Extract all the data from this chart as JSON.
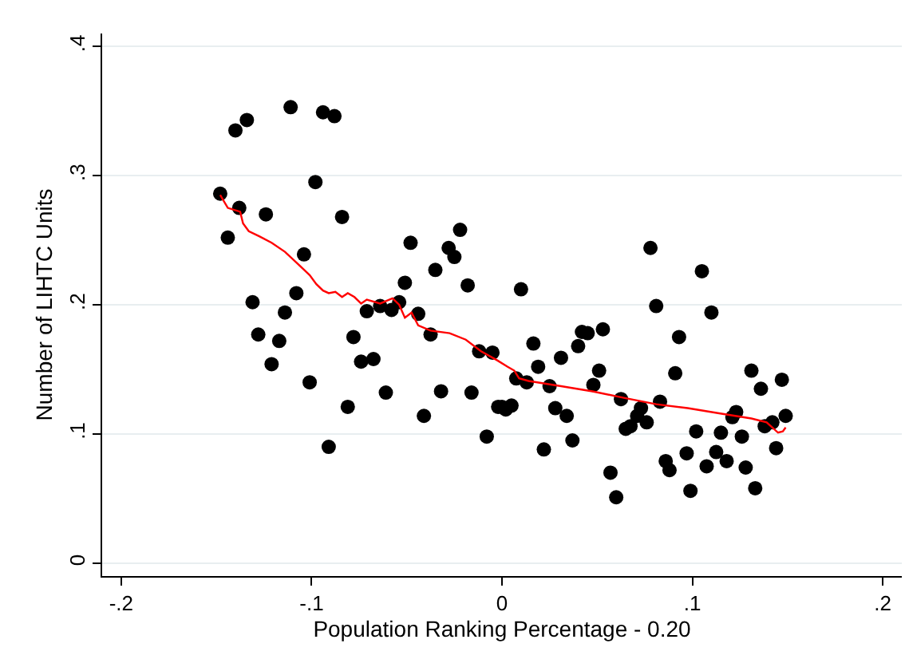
{
  "chart_data": {
    "type": "scatter",
    "xlabel": "Population Ranking Percentage - 0.20",
    "ylabel": "Number of LIHTC Units",
    "xlim": [
      -0.21,
      0.21
    ],
    "ylim": [
      -0.01,
      0.41
    ],
    "xticks": [
      {
        "value": -0.2,
        "label": "-.2"
      },
      {
        "value": -0.1,
        "label": "-.1"
      },
      0,
      {
        "value": 0.1,
        "label": ".1"
      },
      {
        "value": 0.2,
        "label": ".2"
      }
    ],
    "yticks": [
      0,
      {
        "value": 0.1,
        "label": ".1"
      },
      {
        "value": 0.2,
        "label": ".2"
      },
      {
        "value": 0.3,
        "label": ".3"
      },
      {
        "value": 0.4,
        "label": ".4"
      }
    ],
    "grid": "y",
    "marker": "circle",
    "series": [
      {
        "color": "#000000",
        "x": [
          -0.148,
          -0.144,
          -0.14,
          -0.134,
          -0.138,
          -0.131,
          -0.124,
          -0.128,
          -0.121,
          -0.117,
          -0.114,
          -0.111,
          -0.108,
          -0.104,
          -0.101,
          -0.098,
          -0.094,
          -0.088,
          -0.091,
          -0.084,
          -0.081,
          -0.078,
          -0.074,
          -0.0675,
          -0.071,
          -0.064,
          -0.058,
          -0.054,
          -0.061,
          -0.051,
          -0.048,
          -0.044,
          -0.0375,
          -0.041,
          -0.035,
          -0.032,
          -0.028,
          -0.025,
          -0.022,
          -0.018,
          -0.016,
          -0.012,
          -0.008,
          -0.005,
          -0.002,
          0.0,
          0.002,
          0.005,
          0.0075,
          0.01,
          0.013,
          0.0165,
          0.019,
          0.022,
          0.025,
          0.028,
          0.031,
          0.034,
          0.037,
          0.04,
          0.042,
          0.045,
          0.048,
          0.051,
          0.053,
          0.057,
          0.06,
          0.0625,
          0.065,
          0.0675,
          0.071,
          0.073,
          0.076,
          0.078,
          0.081,
          0.083,
          0.086,
          0.088,
          0.091,
          0.093,
          0.097,
          0.099,
          0.102,
          0.105,
          0.1075,
          0.11,
          0.1125,
          0.115,
          0.118,
          0.121,
          0.123,
          0.126,
          0.128,
          0.131,
          0.133,
          0.136,
          0.138,
          0.142,
          0.144,
          0.147,
          0.149
        ],
        "values": [
          0.286,
          0.252,
          0.335,
          0.343,
          0.275,
          0.202,
          0.27,
          0.177,
          0.154,
          0.172,
          0.194,
          0.353,
          0.209,
          0.239,
          0.14,
          0.295,
          0.349,
          0.346,
          0.09,
          0.268,
          0.121,
          0.175,
          0.156,
          0.158,
          0.195,
          0.199,
          0.196,
          0.202,
          0.132,
          0.217,
          0.248,
          0.193,
          0.177,
          0.114,
          0.227,
          0.133,
          0.244,
          0.237,
          0.258,
          0.215,
          0.132,
          0.164,
          0.098,
          0.163,
          0.121,
          0.121,
          0.119,
          0.122,
          0.143,
          0.212,
          0.14,
          0.17,
          0.152,
          0.088,
          0.137,
          0.12,
          0.159,
          0.114,
          0.095,
          0.168,
          0.179,
          0.178,
          0.138,
          0.149,
          0.181,
          0.07,
          0.051,
          0.127,
          0.104,
          0.106,
          0.114,
          0.12,
          0.109,
          0.244,
          0.199,
          0.125,
          0.079,
          0.072,
          0.147,
          0.175,
          0.085,
          0.056,
          0.102,
          0.226,
          0.075,
          0.194,
          0.086,
          0.101,
          0.079,
          0.113,
          0.117,
          0.098,
          0.074,
          0.149,
          0.058,
          0.135,
          0.106,
          0.109,
          0.089,
          0.142,
          0.114
        ]
      },
      {
        "type": "line",
        "color": "#ff0000",
        "marker": "none",
        "line_style": "solid",
        "x": [
          -0.148,
          -0.144,
          -0.1375,
          -0.136,
          -0.133,
          -0.1275,
          -0.121,
          -0.114,
          -0.1075,
          -0.101,
          -0.0975,
          -0.094,
          -0.091,
          -0.0875,
          -0.084,
          -0.081,
          -0.0775,
          -0.074,
          -0.071,
          -0.064,
          -0.0575,
          -0.054,
          -0.051,
          -0.0475,
          -0.044,
          -0.0375,
          -0.0275,
          -0.019,
          -0.011,
          -0.0025,
          0.003,
          0.0065,
          0.009,
          0.014,
          0.031,
          0.0475,
          0.064,
          0.081,
          0.0975,
          0.114,
          0.131,
          0.139,
          0.145,
          0.1475,
          0.149
        ],
        "values": [
          0.285,
          0.275,
          0.272,
          0.263,
          0.257,
          0.253,
          0.248,
          0.241,
          0.232,
          0.223,
          0.216,
          0.211,
          0.209,
          0.21,
          0.206,
          0.209,
          0.206,
          0.201,
          0.204,
          0.201,
          0.205,
          0.2,
          0.19,
          0.194,
          0.184,
          0.18,
          0.178,
          0.173,
          0.164,
          0.157,
          0.152,
          0.149,
          0.143,
          0.141,
          0.137,
          0.133,
          0.128,
          0.123,
          0.12,
          0.116,
          0.112,
          0.109,
          0.101,
          0.102,
          0.105
        ]
      }
    ]
  }
}
